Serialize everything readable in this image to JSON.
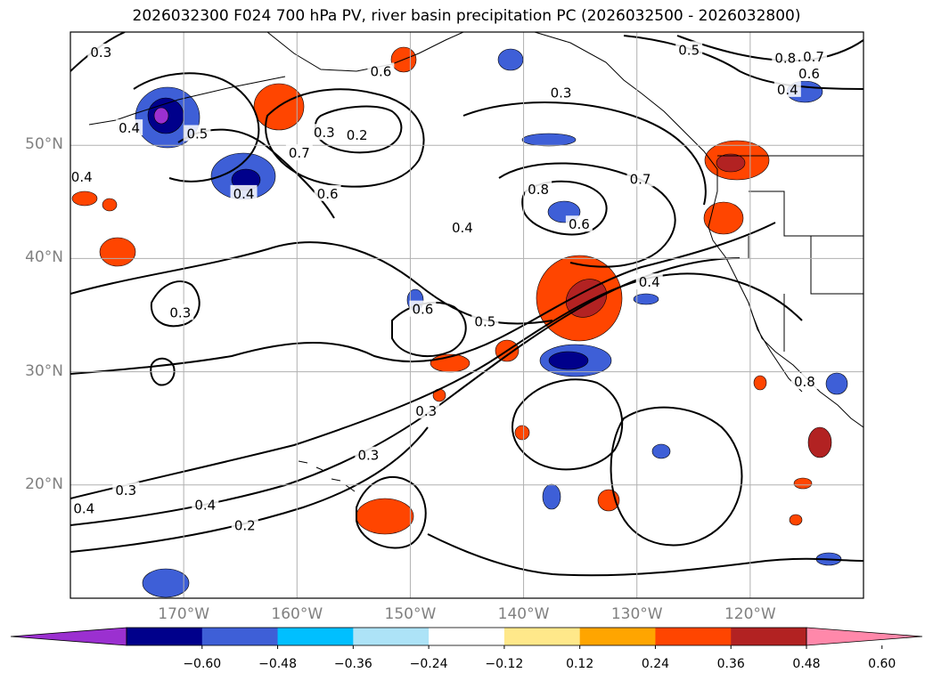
{
  "title": "2026032300 F024 700 hPa PV, river basin precipitation PC (2026032500 - 2026032800)",
  "map": {
    "lon_range": [
      -180,
      -110
    ],
    "lat_range": [
      10,
      60
    ],
    "lat_ticks": [
      {
        "value": 20,
        "label": "20°N"
      },
      {
        "value": 30,
        "label": "30°N"
      },
      {
        "value": 40,
        "label": "40°N"
      },
      {
        "value": 50,
        "label": "50°N"
      }
    ],
    "lon_ticks": [
      {
        "value": -170,
        "label": "170°W"
      },
      {
        "value": -160,
        "label": "160°W"
      },
      {
        "value": -150,
        "label": "150°W"
      },
      {
        "value": -140,
        "label": "140°W"
      },
      {
        "value": -130,
        "label": "130°W"
      },
      {
        "value": -120,
        "label": "120°W"
      }
    ],
    "contour_labels": [
      {
        "text": "0.3",
        "lon": -177.3,
        "lat": 58.2
      },
      {
        "text": "0.4",
        "lon": -174.8,
        "lat": 51.5
      },
      {
        "text": "0.5",
        "lon": -168.8,
        "lat": 51.0
      },
      {
        "text": "0.4",
        "lon": -179.0,
        "lat": 47.2
      },
      {
        "text": "0.6",
        "lon": -152.6,
        "lat": 56.5
      },
      {
        "text": "0.6",
        "lon": -157.3,
        "lat": 45.7
      },
      {
        "text": "0.7",
        "lon": -159.8,
        "lat": 49.3
      },
      {
        "text": "0.3",
        "lon": -157.6,
        "lat": 51.1
      },
      {
        "text": "0.2",
        "lon": -154.7,
        "lat": 50.9
      },
      {
        "text": "0.4",
        "lon": -164.7,
        "lat": 45.7
      },
      {
        "text": "0.3",
        "lon": -136.7,
        "lat": 54.6
      },
      {
        "text": "0.5",
        "lon": -125.4,
        "lat": 58.4
      },
      {
        "text": "0.8",
        "lon": -116.9,
        "lat": 57.7
      },
      {
        "text": "0.7",
        "lon": -114.4,
        "lat": 57.8
      },
      {
        "text": "0.6",
        "lon": -114.8,
        "lat": 56.3
      },
      {
        "text": "0.4",
        "lon": -116.7,
        "lat": 54.9
      },
      {
        "text": "0.8",
        "lon": -138.7,
        "lat": 46.1
      },
      {
        "text": "0.7",
        "lon": -129.7,
        "lat": 47.0
      },
      {
        "text": "0.6",
        "lon": -135.1,
        "lat": 43.0
      },
      {
        "text": "0.4",
        "lon": -145.4,
        "lat": 42.7
      },
      {
        "text": "0.4",
        "lon": -128.9,
        "lat": 37.9
      },
      {
        "text": "0.6",
        "lon": -148.9,
        "lat": 35.5
      },
      {
        "text": "0.5",
        "lon": -143.4,
        "lat": 34.4
      },
      {
        "text": "0.3",
        "lon": -170.3,
        "lat": 35.2
      },
      {
        "text": "0.3",
        "lon": -148.6,
        "lat": 26.5
      },
      {
        "text": "0.3",
        "lon": -153.7,
        "lat": 22.6
      },
      {
        "text": "0.3",
        "lon": -175.1,
        "lat": 19.5
      },
      {
        "text": "0.4",
        "lon": -178.8,
        "lat": 17.9
      },
      {
        "text": "0.4",
        "lon": -168.1,
        "lat": 18.2
      },
      {
        "text": "0.2",
        "lon": -164.6,
        "lat": 16.4
      },
      {
        "text": "0.8",
        "lon": -115.2,
        "lat": 29.1
      }
    ]
  },
  "colorbar": {
    "colors": [
      "#9b30d0",
      "#00008b",
      "#3e5fd7",
      "#00bfff",
      "#ade3f7",
      "#ffffff",
      "#ffe88a",
      "#ffa500",
      "#ff4500",
      "#b22222",
      "#ff88aa"
    ],
    "tick_labels": [
      "−0.60",
      "−0.48",
      "−0.36",
      "−0.24",
      "−0.12",
      "0.12",
      "0.24",
      "0.36",
      "0.48",
      "0.60"
    ]
  }
}
